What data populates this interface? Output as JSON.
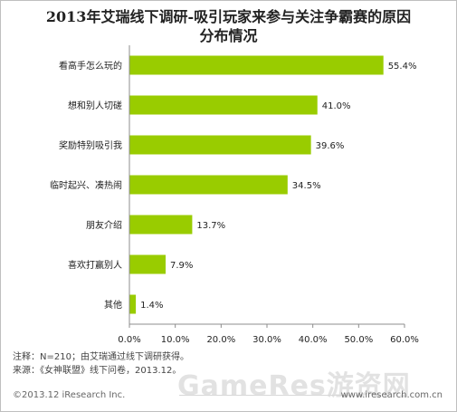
{
  "chart_data": {
    "type": "bar",
    "orientation": "horizontal",
    "title_line1": "2013年艾瑞线下调研-吸引玩家来参与关注争霸赛的原因",
    "title_line2": "分布情况",
    "categories": [
      "看高手怎么玩的",
      "想和别人切磋",
      "奖励特别吸引我",
      "临时起兴、凑热闹",
      "朋友介绍",
      "喜欢打赢别人",
      "其他"
    ],
    "values": [
      55.4,
      41.0,
      39.6,
      34.5,
      13.7,
      7.9,
      1.4
    ],
    "value_labels": [
      "55.4%",
      "41.0%",
      "39.6%",
      "34.5%",
      "13.7%",
      "7.9%",
      "1.4%"
    ],
    "xlim": [
      0,
      60
    ],
    "xticks": [
      0,
      10,
      20,
      30,
      40,
      50,
      60
    ],
    "xtick_labels": [
      "0.0%",
      "10.0%",
      "20.0%",
      "30.0%",
      "40.0%",
      "50.0%",
      "60.0%"
    ],
    "bar_color": "#99cc00",
    "grid": false,
    "legend": "none"
  },
  "footer": {
    "note": "注释：N=210；由艾瑞通过线下调研获得。",
    "source": "来源：《女神联盟》线下问卷，2013.12。",
    "copyright": "©2013.12 iResearch Inc.",
    "site": "www.iresearch.com.cn"
  },
  "watermark": {
    "text": "GameRes游资网"
  }
}
